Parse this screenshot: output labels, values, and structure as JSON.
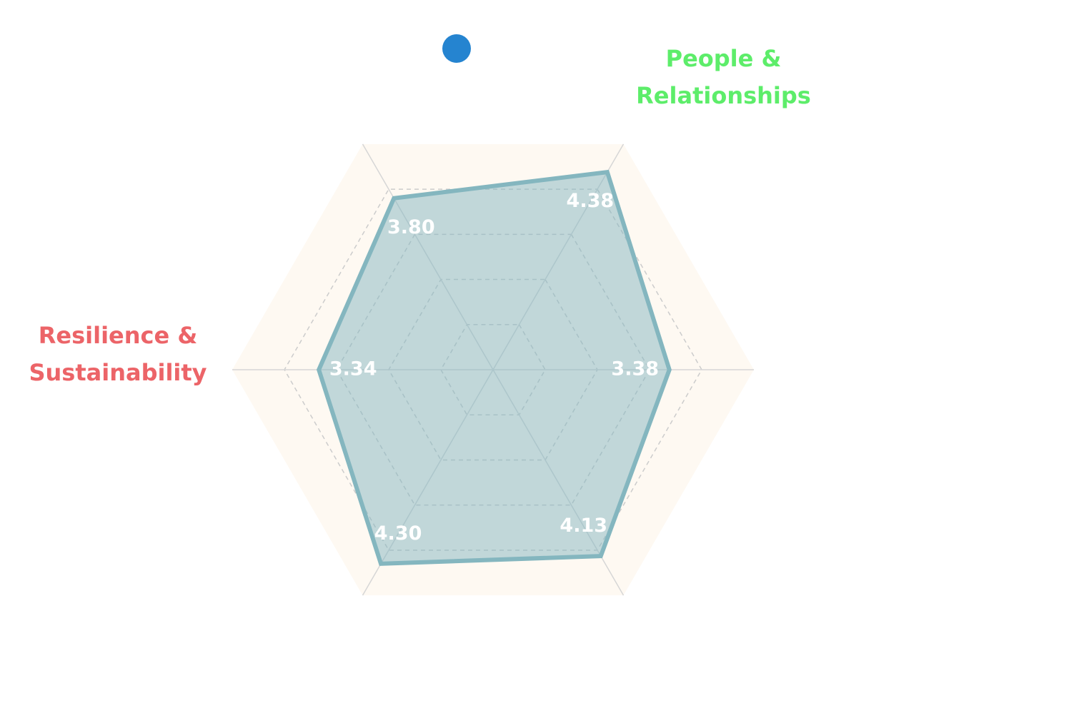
{
  "chart_data": {
    "type": "radar",
    "categories": [
      "People & Relationships",
      null,
      null,
      null,
      "Resilience & Sustainability",
      null
    ],
    "category_colors": [
      "#5ded6a",
      null,
      null,
      null,
      "#ec6468",
      null
    ],
    "series": [
      {
        "color": "#84b6bf",
        "values": [
          4.38,
          3.38,
          4.13,
          4.3,
          3.34,
          3.8
        ],
        "value_labels": [
          "4.38",
          "3.38",
          "4.13",
          "4.30",
          "3.34",
          "3.80"
        ]
      }
    ],
    "legend_marker_color": "#2584d0",
    "rlim": [
      0,
      5
    ],
    "rticks": [
      1,
      2,
      3,
      4
    ],
    "grid": true,
    "band_color": "#fef9f2"
  }
}
